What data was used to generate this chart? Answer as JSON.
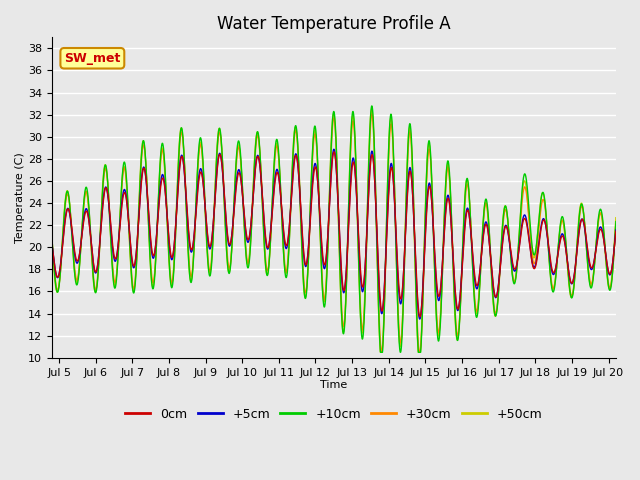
{
  "title": "Water Temperature Profile A",
  "xlabel": "Time",
  "ylabel": "Temperature (C)",
  "ylim": [
    10,
    39
  ],
  "yticks": [
    10,
    12,
    14,
    16,
    18,
    20,
    22,
    24,
    26,
    28,
    30,
    32,
    34,
    36,
    38
  ],
  "legend_labels": [
    "0cm",
    "+5cm",
    "+10cm",
    "+30cm",
    "+50cm"
  ],
  "legend_colors": [
    "#cc0000",
    "#0000cc",
    "#00cc00",
    "#ff8800",
    "#cccc00"
  ],
  "annotation_text": "SW_met",
  "annotation_color": "#cc0000",
  "annotation_bg": "#ffff99",
  "annotation_border": "#cc8800",
  "bg_color": "#e8e8e8",
  "plot_bg": "#e8e8e8",
  "x_start": 4.8,
  "x_end": 20.2,
  "xtick_positions": [
    5,
    6,
    7,
    8,
    9,
    10,
    11,
    12,
    13,
    14,
    15,
    16,
    17,
    18,
    19,
    20
  ],
  "xtick_labels": [
    "Jul 5",
    "Jul 6",
    "Jul 7",
    "Jul 8",
    "Jul 9",
    "Jul 10",
    "Jul 11",
    "Jul 12",
    "Jul 13",
    "Jul 14",
    "Jul 15",
    "Jul 16",
    "Jul 17",
    "Jul 18",
    "Jul 19",
    "Jul 20"
  ],
  "line_width": 1.0,
  "grid_color": "#ffffff",
  "title_fontsize": 12,
  "axis_fontsize": 8,
  "legend_fontsize": 9
}
